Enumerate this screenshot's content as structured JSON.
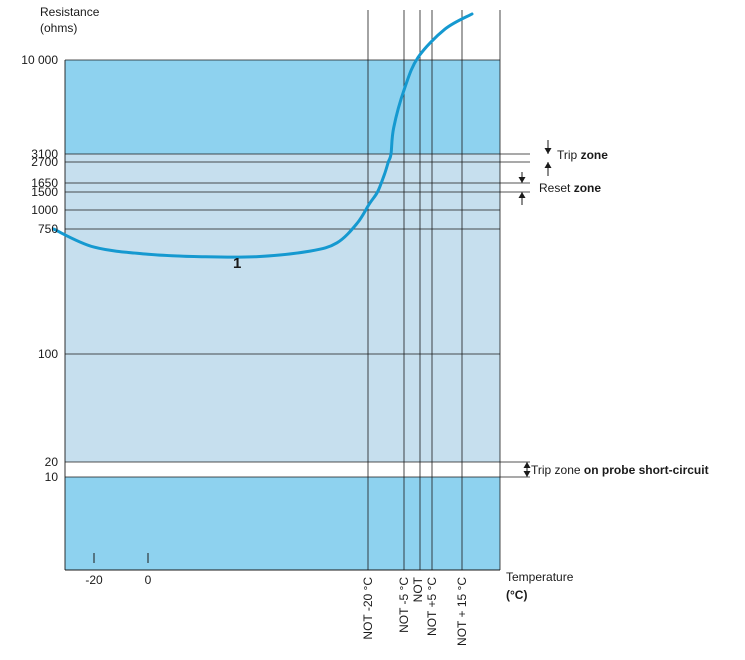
{
  "chart_data": {
    "type": "line",
    "ylabel_line1": "Resistance",
    "ylabel_line2": "(ohms)",
    "xlabel_line1": "Temperature",
    "xlabel_line2": "(°C)",
    "y_ticks": [
      "10 000",
      "3100",
      "2700",
      "1650",
      "1500",
      "1000",
      "750",
      "100",
      "20",
      "10"
    ],
    "x_ticks": [
      "-20",
      "0"
    ],
    "not_labels": [
      "NOT -20 °C",
      "NOT -5 °C",
      "NOT",
      "NOT +5 °C",
      "NOT + 15 °C"
    ],
    "curve_label": "1",
    "annotations": {
      "trip": {
        "plain": "Trip ",
        "bold": "zone"
      },
      "reset": {
        "plain": "Reset ",
        "bold": "zone"
      },
      "short": {
        "plain": "Trip zone ",
        "bold": "on probe short-circuit"
      }
    },
    "series": [
      {
        "x": [
          -35,
          -20,
          0,
          20,
          40,
          60,
          70,
          77.5,
          82,
          85,
          87.5,
          89,
          90,
          91,
          95,
          100,
          110,
          120
        ],
        "y": [
          750,
          560,
          500,
          480,
          480,
          525,
          600,
          820,
          1150,
          1500,
          2000,
          2700,
          3100,
          4300,
          7000,
          10500,
          18000,
          24000
        ]
      }
    ],
    "bands": [
      {
        "from": 3100,
        "to": 10000,
        "color": "#8ed2ef"
      },
      {
        "from": 20,
        "to": 3100,
        "color": "#c6dfee"
      },
      {
        "from": 10,
        "to": 20,
        "color": "#ffffff"
      },
      {
        "from": 2.8,
        "to": 10,
        "color": "#8ed2ef"
      }
    ],
    "colors": {
      "curve": "#1599d0",
      "axis": "#1a1a1a"
    }
  }
}
